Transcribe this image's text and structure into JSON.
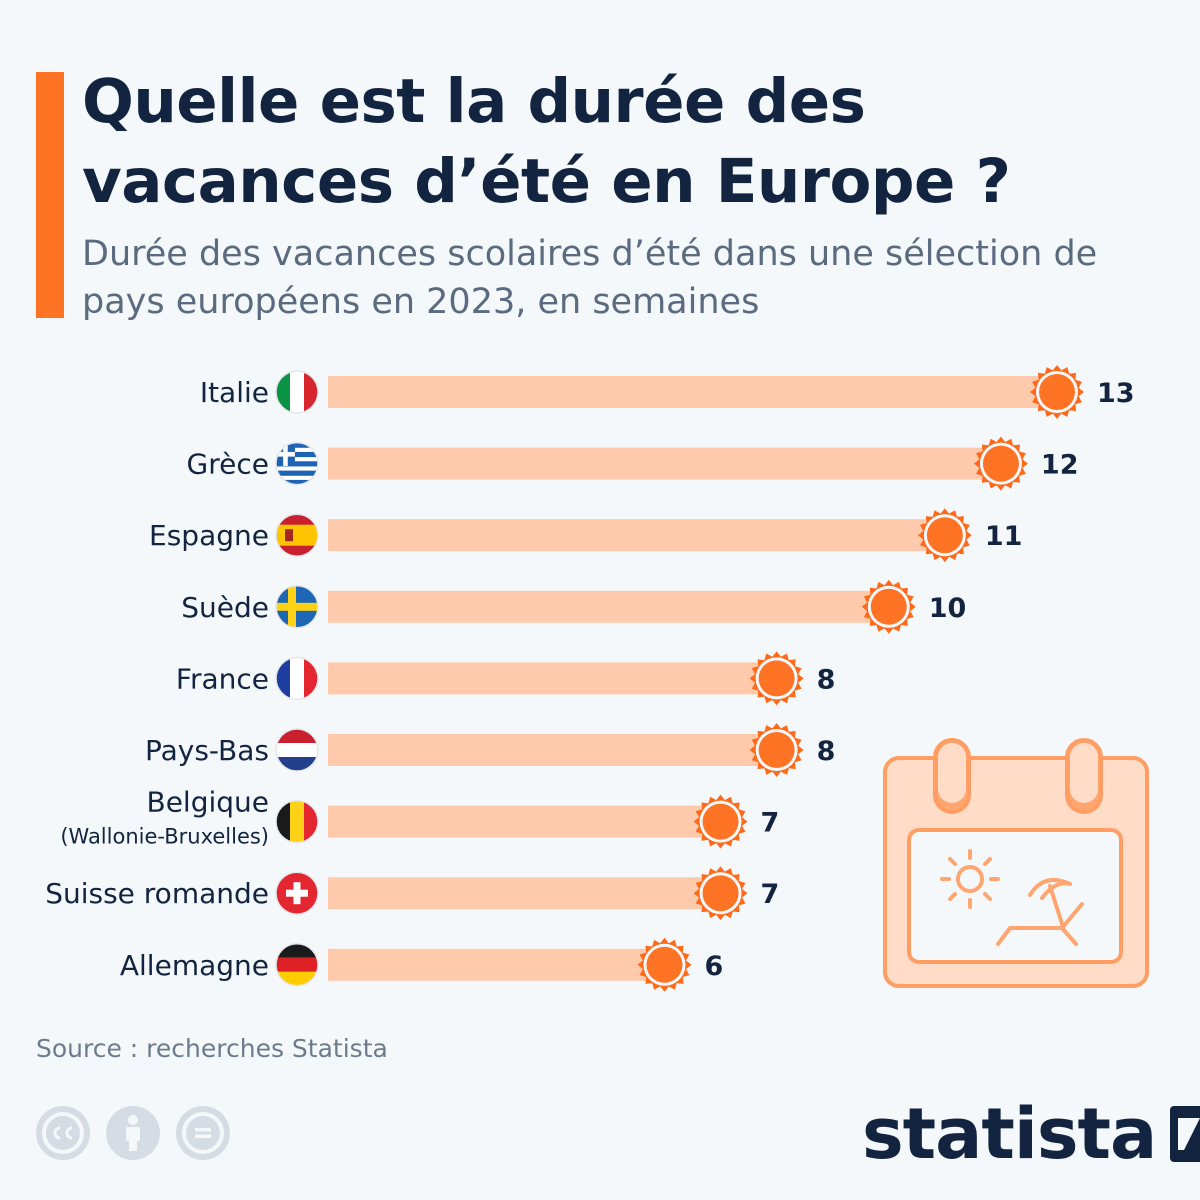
{
  "header": {
    "title": "Quelle est la durée des vacances d’été en Europe ?",
    "subtitle": "Durée des vacances scolaires d’été dans une sélection de pays européens en 2023, en semaines"
  },
  "chart_data": {
    "type": "bar",
    "orientation": "horizontal",
    "title": "Quelle est la durée des vacances d’été en Europe ?",
    "subtitle": "Durée des vacances scolaires d’été dans une sélection de pays européens en 2023, en semaines",
    "categories": [
      "Italie",
      "Grèce",
      "Espagne",
      "Suède",
      "France",
      "Pays-Bas",
      "Belgique",
      "Suisse romande",
      "Allemagne"
    ],
    "category_sublabels": [
      "",
      "",
      "",
      "",
      "",
      "",
      "(Wallonie-Bruxelles)",
      "",
      ""
    ],
    "flag_icons": [
      "italy-flag-icon",
      "greece-flag-icon",
      "spain-flag-icon",
      "sweden-flag-icon",
      "france-flag-icon",
      "netherlands-flag-icon",
      "belgium-flag-icon",
      "switzerland-flag-icon",
      "germany-flag-icon"
    ],
    "values": [
      13,
      12,
      11,
      10,
      8,
      8,
      7,
      7,
      6
    ],
    "xlim": [
      0,
      13
    ],
    "grid": false,
    "colors": {
      "bar": "#ffcaab",
      "sun": "#ff7424",
      "sun_dark": "#ff6a1a",
      "value_text": "#12243f"
    }
  },
  "footer": {
    "source": "Source : recherches Statista",
    "cc_icons": [
      "cc-icon",
      "attribution-icon",
      "no-derivatives-icon"
    ],
    "logo_text": "statista"
  },
  "decor": {
    "illustration": "calendar-beach-icon"
  }
}
